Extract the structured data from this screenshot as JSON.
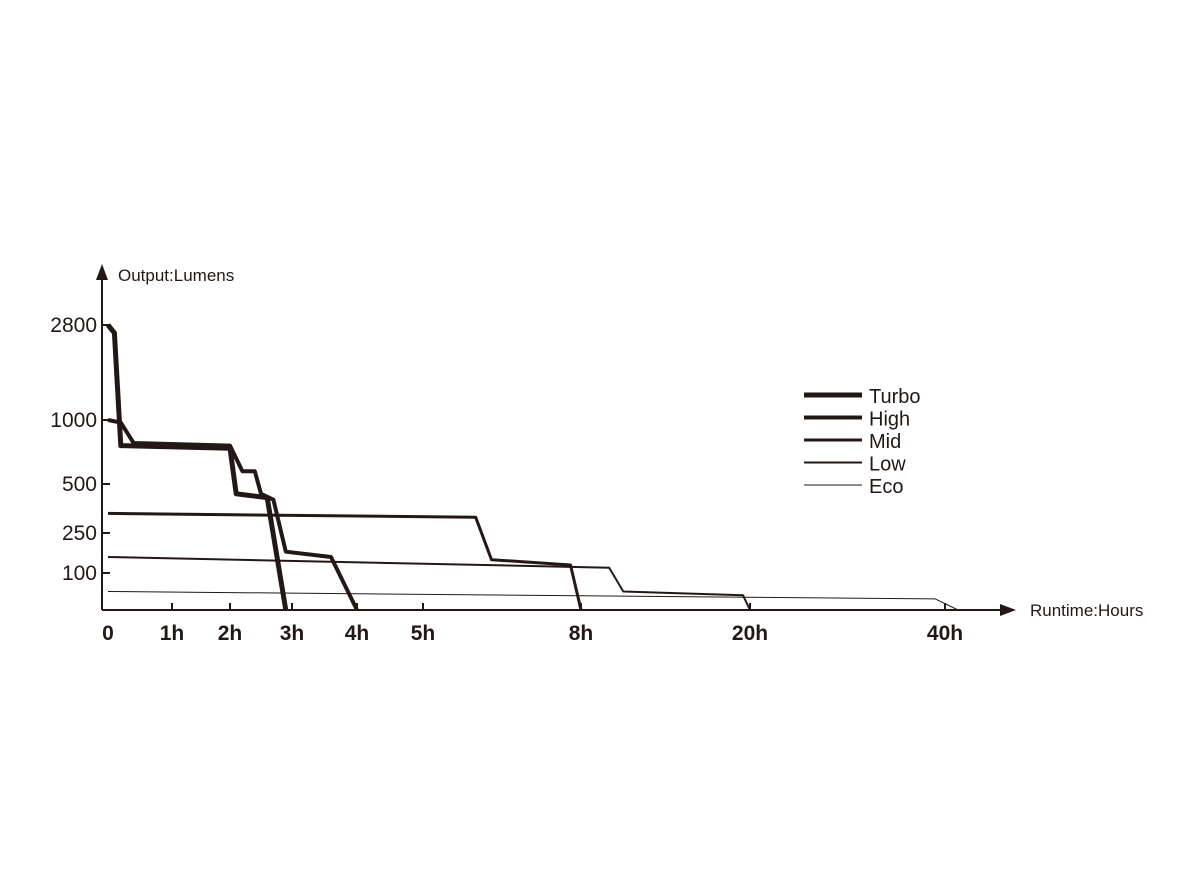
{
  "chart_data": {
    "type": "line",
    "xlabel": "Runtime:Hours",
    "ylabel": "Output:Lumens",
    "x_ticks": [
      "0",
      "1h",
      "2h",
      "3h",
      "4h",
      "5h",
      "8h",
      "20h",
      "40h"
    ],
    "y_ticks": [
      "100",
      "250",
      "500",
      "1000",
      "2800"
    ],
    "legend_position": "right",
    "line_color": "#231815",
    "series": [
      {
        "name": "Turbo",
        "points": [
          {
            "x": "0",
            "y": 2800
          },
          {
            "x": "0.1h",
            "y": 2650
          },
          {
            "x": "0.2h",
            "y": 800
          },
          {
            "x": "2h",
            "y": 780
          },
          {
            "x": "2.1h",
            "y": 450
          },
          {
            "x": "2.6h",
            "y": 430
          },
          {
            "x": "2.9h",
            "y": 0
          }
        ]
      },
      {
        "name": "High",
        "points": [
          {
            "x": "0",
            "y": 1000
          },
          {
            "x": "0.2h",
            "y": 980
          },
          {
            "x": "0.4h",
            "y": 820
          },
          {
            "x": "2h",
            "y": 800
          },
          {
            "x": "2.2h",
            "y": 600
          },
          {
            "x": "2.4h",
            "y": 600
          },
          {
            "x": "2.5h",
            "y": 450
          },
          {
            "x": "2.7h",
            "y": 420
          },
          {
            "x": "2.9h",
            "y": 180
          },
          {
            "x": "3.6h",
            "y": 160
          },
          {
            "x": "4h",
            "y": 0
          }
        ]
      },
      {
        "name": "Mid",
        "points": [
          {
            "x": "0",
            "y": 350
          },
          {
            "x": "6h",
            "y": 330
          },
          {
            "x": "6.3h",
            "y": 150
          },
          {
            "x": "7.8h",
            "y": 130
          },
          {
            "x": "8h",
            "y": 0
          }
        ]
      },
      {
        "name": "Low",
        "points": [
          {
            "x": "0",
            "y": 160
          },
          {
            "x": "10h",
            "y": 120
          },
          {
            "x": "11h",
            "y": 50
          },
          {
            "x": "19.5h",
            "y": 40
          },
          {
            "x": "20h",
            "y": 0
          }
        ]
      },
      {
        "name": "Eco",
        "points": [
          {
            "x": "0",
            "y": 50
          },
          {
            "x": "39h",
            "y": 30
          },
          {
            "x": "41h",
            "y": 0
          }
        ]
      }
    ]
  }
}
